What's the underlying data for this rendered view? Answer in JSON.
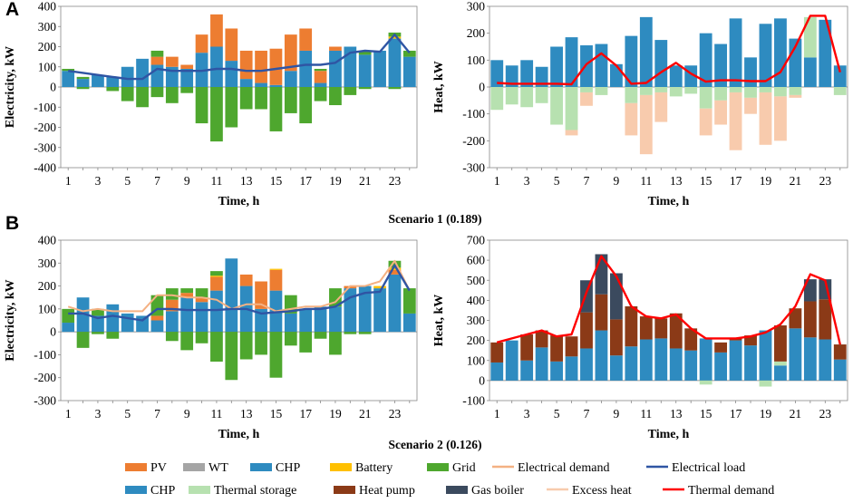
{
  "figure": {
    "panel_a_label": "A",
    "panel_b_label": "B",
    "scenario1_caption": "Scenario 1 (0.189)",
    "scenario2_caption": "Scenario 2 (0.126)"
  },
  "colors": {
    "pv": "#ED7D31",
    "wt": "#A5A5A5",
    "chp": "#2E8BC0",
    "battery": "#FFC000",
    "grid": "#4EA72E",
    "elec_demand": "#F4B183",
    "elec_load": "#2F55A4",
    "thermal_storage": "#B7E1B0",
    "heat_pump": "#8B3A17",
    "gas_boiler": "#3B4A5E",
    "excess_heat": "#F8CBAD",
    "thermal_demand": "#FF0000"
  },
  "legend": {
    "row1": [
      {
        "key": "pv",
        "label": "PV",
        "type": "box"
      },
      {
        "key": "wt",
        "label": "WT",
        "type": "box"
      },
      {
        "key": "chp",
        "label": "CHP",
        "type": "box"
      },
      {
        "key": "battery",
        "label": "Battery",
        "type": "box"
      },
      {
        "key": "grid",
        "label": "Grid",
        "type": "box"
      },
      {
        "key": "elec_demand",
        "label": "Electrical demand",
        "type": "line"
      },
      {
        "key": "elec_load",
        "label": "Electrical load",
        "type": "line"
      }
    ],
    "row2": [
      {
        "key": "chp",
        "label": "CHP",
        "type": "box"
      },
      {
        "key": "thermal_storage",
        "label": "Thermal storage",
        "type": "box"
      },
      {
        "key": "heat_pump",
        "label": "Heat pump",
        "type": "box"
      },
      {
        "key": "gas_boiler",
        "label": "Gas boiler",
        "type": "box"
      },
      {
        "key": "excess_heat",
        "label": "Excess heat",
        "type": "line"
      },
      {
        "key": "thermal_demand",
        "label": "Thermal demand",
        "type": "line"
      }
    ]
  },
  "chart_data": [
    {
      "id": "s1_elec",
      "type": "bar",
      "stacked": true,
      "xlabel": "Time, h",
      "ylabel": "Electricity, kW",
      "ylim": [
        -400,
        400
      ],
      "yticks": [
        -400,
        -300,
        -200,
        -100,
        0,
        100,
        200,
        300,
        400
      ],
      "x_ticks": [
        1,
        3,
        5,
        7,
        9,
        11,
        13,
        15,
        17,
        19,
        21,
        23
      ],
      "hours": [
        1,
        2,
        3,
        4,
        5,
        6,
        7,
        8,
        9,
        10,
        11,
        12,
        13,
        14,
        15,
        16,
        17,
        18,
        19,
        20,
        21,
        22,
        23,
        24
      ],
      "series": [
        {
          "key": "chp",
          "name": "CHP",
          "values": [
            80,
            40,
            60,
            50,
            100,
            140,
            110,
            100,
            90,
            170,
            200,
            130,
            40,
            20,
            10,
            80,
            180,
            20,
            180,
            200,
            160,
            180,
            240,
            150
          ]
        },
        {
          "key": "pv",
          "name": "PV",
          "values": [
            0,
            0,
            0,
            0,
            0,
            0,
            40,
            50,
            20,
            90,
            160,
            160,
            140,
            160,
            180,
            180,
            110,
            60,
            20,
            0,
            0,
            0,
            0,
            0
          ]
        },
        {
          "key": "wt",
          "name": "WT",
          "values": [
            0,
            0,
            0,
            0,
            0,
            0,
            0,
            0,
            0,
            0,
            0,
            0,
            0,
            0,
            0,
            0,
            0,
            0,
            0,
            0,
            0,
            0,
            0,
            0
          ]
        },
        {
          "key": "battery",
          "name": "Battery",
          "values": [
            0,
            0,
            0,
            0,
            0,
            0,
            0,
            0,
            0,
            0,
            0,
            0,
            0,
            0,
            0,
            0,
            0,
            0,
            0,
            0,
            0,
            0,
            10,
            0
          ]
        },
        {
          "key": "grid",
          "name": "Grid",
          "values": [
            10,
            10,
            0,
            0,
            0,
            0,
            30,
            0,
            0,
            0,
            0,
            0,
            0,
            0,
            0,
            0,
            0,
            10,
            0,
            0,
            20,
            0,
            20,
            30
          ]
        },
        {
          "key": "grid_neg",
          "name": "Grid (export)",
          "values": [
            0,
            -10,
            0,
            -20,
            -70,
            -100,
            -50,
            -80,
            -30,
            -180,
            -270,
            -200,
            -110,
            -110,
            -220,
            -130,
            -180,
            -70,
            -90,
            -40,
            -10,
            0,
            -10,
            0
          ]
        }
      ],
      "lines": [
        {
          "key": "elec_load",
          "name": "Electrical load",
          "values": [
            80,
            70,
            60,
            50,
            40,
            40,
            90,
            80,
            80,
            80,
            90,
            90,
            80,
            80,
            90,
            100,
            110,
            110,
            120,
            170,
            180,
            175,
            260,
            170
          ]
        }
      ]
    },
    {
      "id": "s1_heat",
      "type": "bar",
      "stacked": true,
      "xlabel": "Time, h",
      "ylabel": "Heat, kW",
      "ylim": [
        -300,
        300
      ],
      "yticks": [
        -300,
        -200,
        -100,
        0,
        100,
        200,
        300
      ],
      "x_ticks": [
        1,
        3,
        5,
        7,
        9,
        11,
        13,
        15,
        17,
        19,
        21,
        23
      ],
      "hours": [
        1,
        2,
        3,
        4,
        5,
        6,
        7,
        8,
        9,
        10,
        11,
        12,
        13,
        14,
        15,
        16,
        17,
        18,
        19,
        20,
        21,
        22,
        23,
        24
      ],
      "series": [
        {
          "key": "chp",
          "name": "CHP",
          "values": [
            100,
            80,
            100,
            75,
            150,
            185,
            155,
            160,
            85,
            190,
            260,
            175,
            80,
            80,
            200,
            160,
            255,
            110,
            235,
            255,
            180,
            110,
            250,
            80
          ]
        },
        {
          "key": "thermal_storage",
          "name": "Thermal storage",
          "values": [
            0,
            0,
            0,
            0,
            0,
            0,
            0,
            0,
            0,
            0,
            0,
            0,
            0,
            0,
            0,
            0,
            0,
            0,
            0,
            0,
            0,
            150,
            0,
            0
          ]
        },
        {
          "key": "thermal_storage_neg",
          "name": "Thermal storage (charge)",
          "values": [
            -85,
            -65,
            -75,
            -60,
            -140,
            -160,
            -20,
            -30,
            0,
            -60,
            -30,
            -20,
            -35,
            -25,
            -80,
            -50,
            -20,
            -40,
            -20,
            -35,
            -30,
            0,
            0,
            -30
          ]
        },
        {
          "key": "excess_heat",
          "name": "Excess heat",
          "values": [
            0,
            0,
            0,
            0,
            0,
            -20,
            -50,
            0,
            0,
            -120,
            -220,
            -110,
            0,
            0,
            -100,
            -90,
            -215,
            -60,
            -195,
            -165,
            -10,
            0,
            0,
            0
          ]
        }
      ],
      "lines": [
        {
          "key": "thermal_demand",
          "name": "Thermal demand",
          "values": [
            15,
            12,
            12,
            12,
            12,
            10,
            85,
            125,
            80,
            12,
            15,
            55,
            90,
            50,
            20,
            25,
            25,
            22,
            22,
            55,
            150,
            265,
            265,
            55
          ]
        }
      ]
    },
    {
      "id": "s2_elec",
      "type": "bar",
      "stacked": true,
      "xlabel": "Time, h",
      "ylabel": "Electricity, kW",
      "ylim": [
        -300,
        400
      ],
      "yticks": [
        -300,
        -200,
        -100,
        0,
        100,
        200,
        300,
        400
      ],
      "x_ticks": [
        1,
        3,
        5,
        7,
        9,
        11,
        13,
        15,
        17,
        19,
        21,
        23
      ],
      "hours": [
        1,
        2,
        3,
        4,
        5,
        6,
        7,
        8,
        9,
        10,
        11,
        12,
        13,
        14,
        15,
        16,
        17,
        18,
        19,
        20,
        21,
        22,
        23,
        24
      ],
      "series": [
        {
          "key": "chp",
          "name": "CHP",
          "values": [
            40,
            150,
            70,
            120,
            80,
            70,
            50,
            90,
            150,
            130,
            180,
            320,
            200,
            100,
            180,
            80,
            100,
            110,
            110,
            190,
            200,
            190,
            250,
            80
          ]
        },
        {
          "key": "pv",
          "name": "PV",
          "values": [
            0,
            0,
            0,
            0,
            0,
            0,
            20,
            50,
            20,
            20,
            60,
            0,
            50,
            120,
            90,
            0,
            0,
            0,
            0,
            10,
            0,
            0,
            20,
            0
          ]
        },
        {
          "key": "wt",
          "name": "WT",
          "values": [
            0,
            0,
            0,
            0,
            0,
            0,
            0,
            0,
            0,
            0,
            0,
            0,
            0,
            0,
            0,
            0,
            0,
            0,
            0,
            0,
            0,
            0,
            0,
            0
          ]
        },
        {
          "key": "battery",
          "name": "Battery",
          "values": [
            0,
            0,
            0,
            0,
            0,
            0,
            0,
            0,
            0,
            0,
            5,
            0,
            0,
            0,
            5,
            0,
            0,
            0,
            0,
            0,
            0,
            10,
            10,
            0
          ]
        },
        {
          "key": "grid",
          "name": "Grid",
          "values": [
            60,
            0,
            30,
            0,
            0,
            0,
            90,
            50,
            20,
            40,
            20,
            0,
            0,
            0,
            0,
            80,
            0,
            0,
            80,
            0,
            0,
            0,
            30,
            110
          ]
        },
        {
          "key": "grid_neg",
          "name": "Grid (export)",
          "values": [
            0,
            -70,
            -10,
            -30,
            0,
            0,
            0,
            -40,
            -80,
            -50,
            -130,
            -210,
            -120,
            -100,
            -200,
            -60,
            -90,
            -30,
            -100,
            -10,
            -10,
            0,
            0,
            0
          ]
        }
      ],
      "lines": [
        {
          "key": "elec_demand",
          "name": "Electrical demand",
          "values": [
            110,
            90,
            100,
            90,
            90,
            90,
            160,
            160,
            150,
            150,
            140,
            100,
            120,
            120,
            90,
            100,
            110,
            110,
            130,
            200,
            200,
            220,
            310,
            180
          ]
        },
        {
          "key": "elec_load",
          "name": "Electrical load",
          "values": [
            80,
            80,
            60,
            70,
            60,
            50,
            100,
            100,
            95,
            95,
            95,
            100,
            100,
            80,
            85,
            90,
            100,
            100,
            110,
            150,
            170,
            175,
            290,
            180
          ]
        }
      ]
    },
    {
      "id": "s2_heat",
      "type": "bar",
      "stacked": true,
      "xlabel": "Time, h",
      "ylabel": "Heat, kW",
      "ylim": [
        -100,
        700
      ],
      "yticks": [
        -100,
        0,
        100,
        200,
        300,
        400,
        500,
        600,
        700
      ],
      "x_ticks": [
        1,
        3,
        5,
        7,
        9,
        11,
        13,
        15,
        17,
        19,
        21,
        23
      ],
      "hours": [
        1,
        2,
        3,
        4,
        5,
        6,
        7,
        8,
        9,
        10,
        11,
        12,
        13,
        14,
        15,
        16,
        17,
        18,
        19,
        20,
        21,
        22,
        23,
        24
      ],
      "series": [
        {
          "key": "chp",
          "name": "CHP",
          "values": [
            90,
            200,
            100,
            165,
            95,
            120,
            160,
            250,
            125,
            170,
            205,
            210,
            160,
            150,
            210,
            140,
            200,
            175,
            250,
            75,
            260,
            215,
            205,
            105
          ]
        },
        {
          "key": "thermal_storage",
          "name": "Thermal storage",
          "values": [
            0,
            0,
            0,
            0,
            0,
            0,
            0,
            0,
            0,
            0,
            0,
            0,
            0,
            0,
            0,
            0,
            0,
            0,
            0,
            20,
            0,
            0,
            0,
            0
          ]
        },
        {
          "key": "thermal_storage_neg",
          "name": "Thermal storage (charge)",
          "values": [
            0,
            0,
            0,
            0,
            0,
            0,
            0,
            0,
            0,
            0,
            0,
            0,
            0,
            0,
            -20,
            0,
            0,
            0,
            -30,
            0,
            0,
            0,
            0,
            0
          ]
        },
        {
          "key": "heat_pump",
          "name": "Heat pump",
          "values": [
            100,
            0,
            130,
            85,
            130,
            100,
            180,
            180,
            180,
            200,
            115,
            100,
            175,
            110,
            0,
            50,
            10,
            50,
            0,
            180,
            100,
            180,
            200,
            75
          ]
        },
        {
          "key": "gas_boiler",
          "name": "Gas boiler",
          "values": [
            0,
            0,
            0,
            0,
            0,
            0,
            160,
            200,
            230,
            0,
            0,
            0,
            0,
            0,
            0,
            0,
            0,
            0,
            0,
            0,
            0,
            110,
            100,
            0
          ]
        }
      ],
      "lines": [
        {
          "key": "thermal_demand",
          "name": "Thermal demand",
          "values": [
            190,
            210,
            230,
            250,
            220,
            230,
            440,
            620,
            520,
            370,
            320,
            310,
            330,
            260,
            210,
            210,
            210,
            220,
            240,
            280,
            370,
            530,
            500,
            180
          ]
        }
      ]
    }
  ]
}
